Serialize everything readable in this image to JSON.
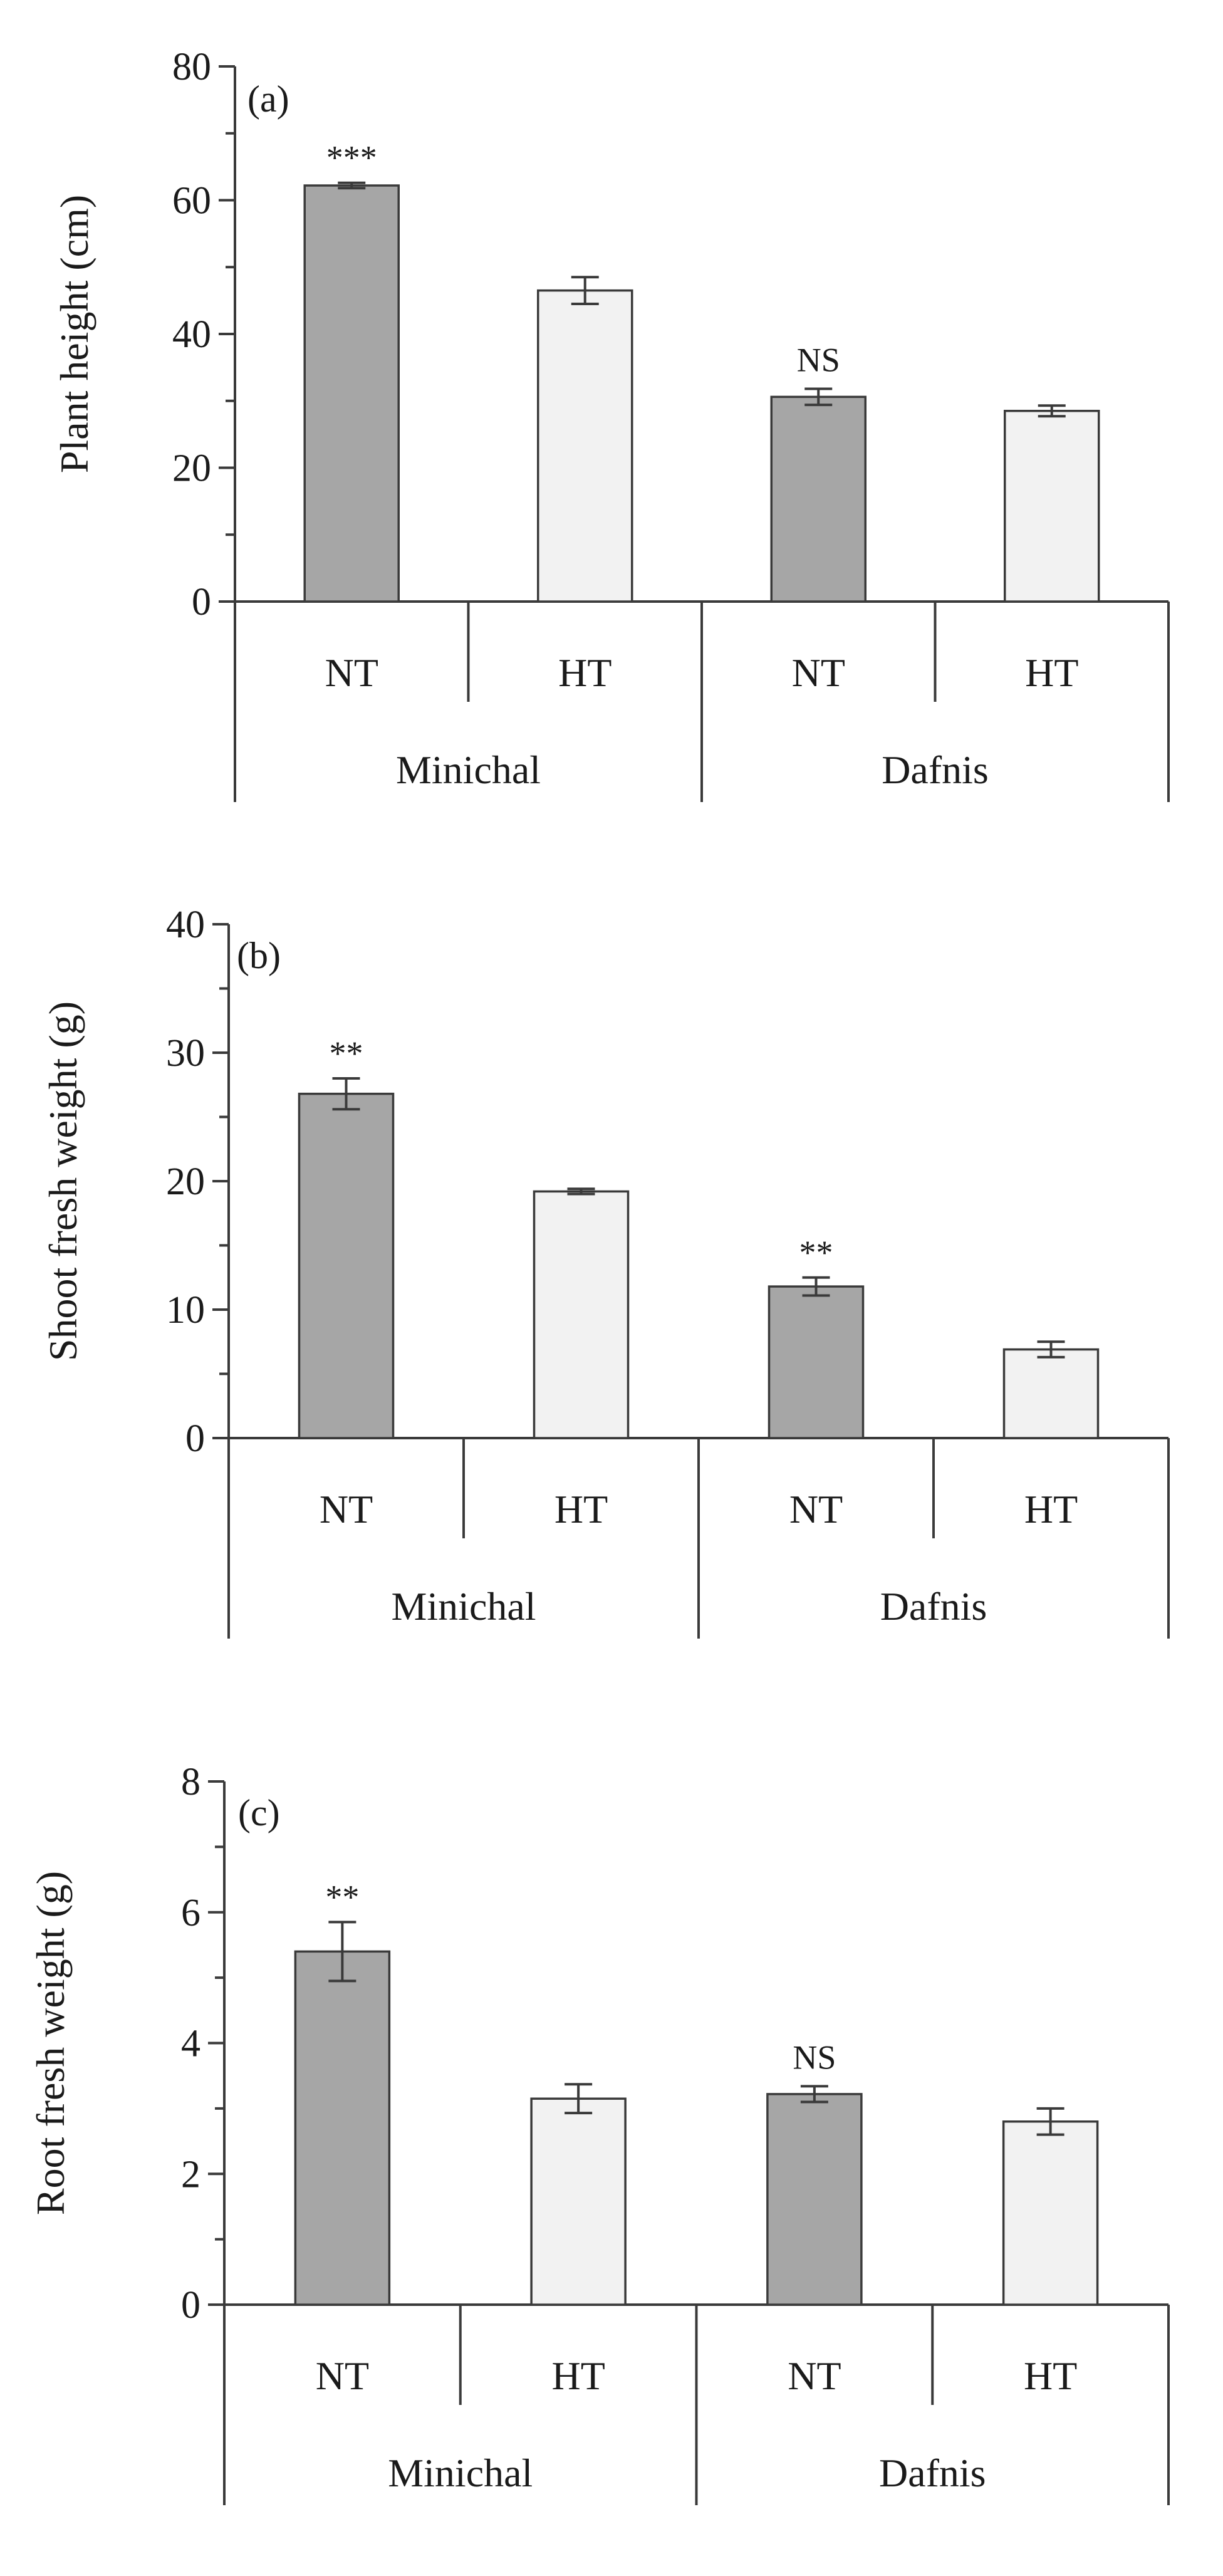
{
  "chart_data": [
    {
      "type": "bar",
      "panel_label": "(a)",
      "ylabel": "Plant height (cm)",
      "ylim": [
        0,
        80
      ],
      "major_ticks": [
        0,
        20,
        40,
        60,
        80
      ],
      "minor_ticks": [
        10,
        30,
        50,
        70
      ],
      "groups": [
        "Minichal",
        "Dafnis"
      ],
      "categories": [
        "NT",
        "HT",
        "NT",
        "HT"
      ],
      "values": [
        62.2,
        46.5,
        30.6,
        28.5
      ],
      "errors": [
        0.4,
        2.0,
        1.2,
        0.8
      ],
      "significance": [
        "***",
        "",
        "NS",
        ""
      ],
      "colors": [
        "#a6a6a6",
        "#f2f2f2",
        "#a6a6a6",
        "#f2f2f2"
      ]
    },
    {
      "type": "bar",
      "panel_label": "(b)",
      "ylabel": "Shoot fresh weight (g)",
      "ylim": [
        0,
        40
      ],
      "major_ticks": [
        0,
        10,
        20,
        30,
        40
      ],
      "minor_ticks": [
        5,
        15,
        25,
        35
      ],
      "groups": [
        "Minichal",
        "Dafnis"
      ],
      "categories": [
        "NT",
        "HT",
        "NT",
        "HT"
      ],
      "values": [
        26.8,
        19.2,
        11.8,
        6.9
      ],
      "errors": [
        1.2,
        0.2,
        0.7,
        0.6
      ],
      "significance": [
        "**",
        "",
        "**",
        ""
      ],
      "colors": [
        "#a6a6a6",
        "#f2f2f2",
        "#a6a6a6",
        "#f2f2f2"
      ]
    },
    {
      "type": "bar",
      "panel_label": "(c)",
      "ylabel": "Root fresh weight (g)",
      "ylim": [
        0,
        8
      ],
      "major_ticks": [
        0,
        2,
        4,
        6,
        8
      ],
      "minor_ticks": [
        1,
        3,
        5,
        7
      ],
      "groups": [
        "Minichal",
        "Dafnis"
      ],
      "categories": [
        "NT",
        "HT",
        "NT",
        "HT"
      ],
      "values": [
        5.4,
        3.15,
        3.22,
        2.8
      ],
      "errors": [
        0.45,
        0.22,
        0.12,
        0.2
      ],
      "significance": [
        "**",
        "",
        "NS",
        ""
      ],
      "colors": [
        "#a6a6a6",
        "#f2f2f2",
        "#a6a6a6",
        "#f2f2f2"
      ]
    }
  ]
}
